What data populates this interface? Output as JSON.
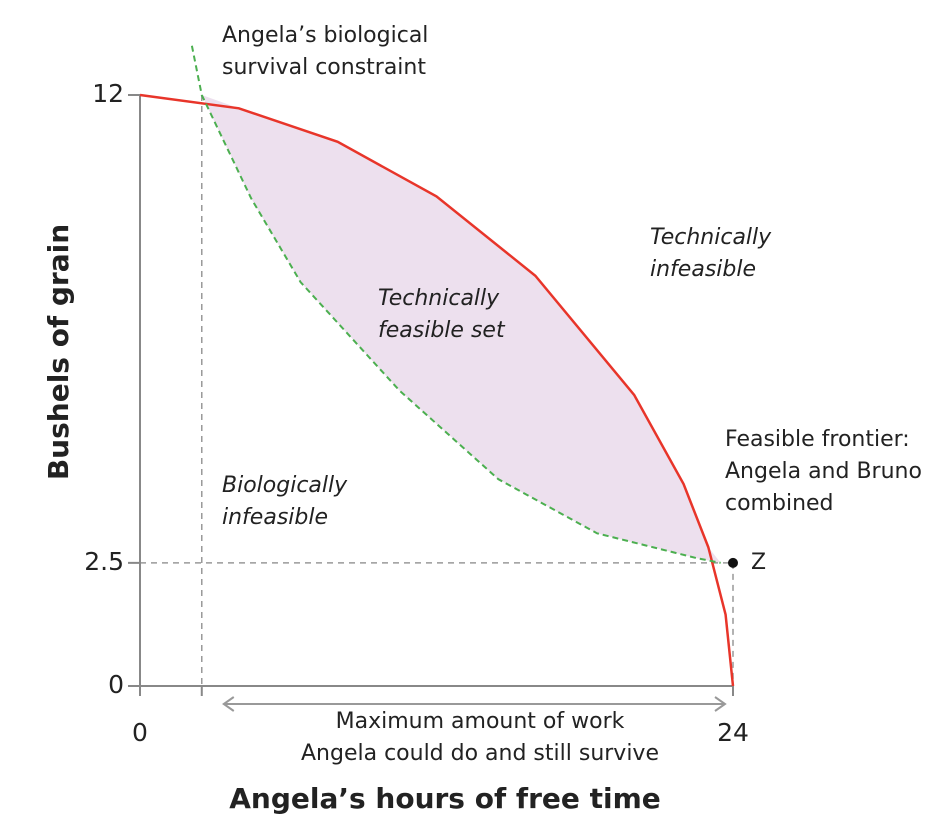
{
  "chart_data": {
    "type": "line",
    "xlabel": "Angela’s hours of free time",
    "ylabel": "Bushels of grain",
    "xlim": [
      0,
      24
    ],
    "ylim": [
      0,
      12
    ],
    "xticks": [
      0,
      24
    ],
    "yticks": [
      0,
      2.5,
      12
    ],
    "series": [
      {
        "name": "Feasible frontier: Angela and Bruno combined",
        "color": "#e8352a",
        "style": "solid",
        "x": [
          0,
          4,
          8,
          12,
          16,
          20,
          22,
          23,
          23.7,
          24
        ],
        "values": [
          12,
          11.73,
          11.05,
          9.94,
          8.33,
          5.91,
          4.1,
          2.82,
          1.45,
          0
        ]
      },
      {
        "name": "Angela’s biological survival constraint",
        "color": "#4caf50",
        "style": "dashed",
        "x": [
          2.1,
          2.5,
          4.5,
          6.5,
          10.5,
          14.5,
          18.5,
          22.5,
          23.5
        ],
        "values": [
          13,
          12,
          9.9,
          8.2,
          6,
          4.2,
          3.1,
          2.6,
          2.5
        ]
      }
    ],
    "fill_color": "#ede0ee",
    "point": {
      "label": "Z",
      "x": 24,
      "y": 2.5
    },
    "guide_x": 2.5,
    "annotations": [
      {
        "lines": [
          "Angela’s biological",
          "survival constraint"
        ],
        "italic": false
      },
      {
        "lines": [
          "Technically",
          "infeasible"
        ],
        "italic": true
      },
      {
        "lines": [
          "Technically",
          "feasible set"
        ],
        "italic": true
      },
      {
        "lines": [
          "Feasible frontier:",
          "Angela and Bruno",
          "combined"
        ],
        "italic": false
      },
      {
        "lines": [
          "Biologically",
          "infeasible"
        ],
        "italic": true
      },
      {
        "lines": [
          "Maximum amount of work",
          "Angela could do and still survive"
        ],
        "italic": false
      }
    ]
  }
}
